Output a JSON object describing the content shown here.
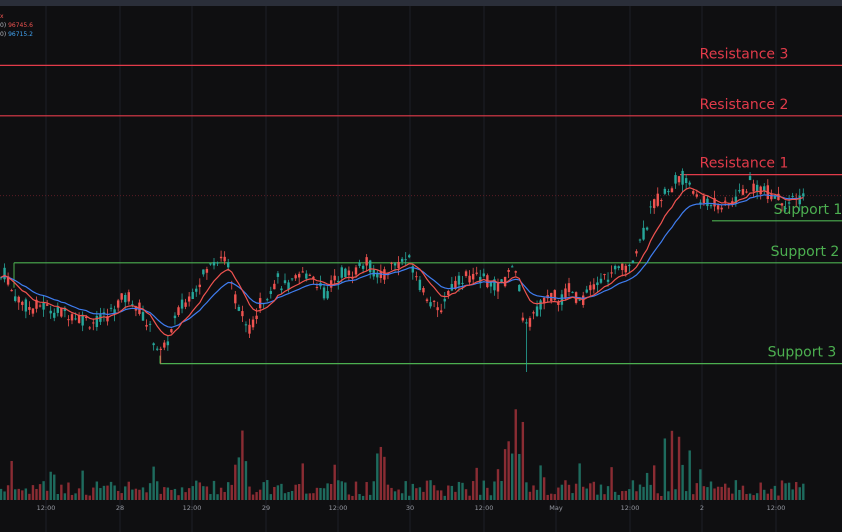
{
  "legend": [
    {
      "label": "x",
      "value": "",
      "color": "#ef5350"
    },
    {
      "label": "0)",
      "value": "96745.6",
      "color": "#ef5350"
    },
    {
      "label": "0)",
      "value": "96715.2",
      "color": "#42a5f5"
    }
  ],
  "levels": [
    {
      "name": "Resistance 3",
      "price": 103,
      "color": "#e23b4a"
    },
    {
      "name": "Resistance 2",
      "price": 91,
      "color": "#e23b4a"
    },
    {
      "name": "Resistance 1",
      "price": 77,
      "color": "#e23b4a"
    },
    {
      "name": "Support 1",
      "price": 66,
      "color": "#4caf50"
    },
    {
      "name": "Support 2",
      "price": 56,
      "color": "#4caf50"
    },
    {
      "name": "Support 3",
      "price": 32,
      "color": "#4caf50"
    }
  ],
  "x_ticks": [
    "12:00",
    "28",
    "12:00",
    "29",
    "12:00",
    "30",
    "12:00",
    "May",
    "12:00",
    "2",
    "12:00"
  ],
  "chart_data": {
    "type": "candlestick",
    "series": [
      {
        "name": "EMA fast",
        "color": "#ef5350"
      },
      {
        "name": "EMA slow",
        "color": "#3f7df0"
      }
    ],
    "price_path": [
      [
        0,
        52
      ],
      [
        6,
        54
      ],
      [
        12,
        49
      ],
      [
        20,
        47
      ],
      [
        30,
        45
      ],
      [
        40,
        46
      ],
      [
        50,
        45
      ],
      [
        60,
        44
      ],
      [
        70,
        44
      ],
      [
        80,
        43
      ],
      [
        90,
        42
      ],
      [
        100,
        42
      ],
      [
        110,
        44
      ],
      [
        120,
        47
      ],
      [
        130,
        48
      ],
      [
        140,
        45
      ],
      [
        150,
        40
      ],
      [
        155,
        37
      ],
      [
        162,
        34
      ],
      [
        170,
        39
      ],
      [
        180,
        45
      ],
      [
        190,
        48
      ],
      [
        200,
        52
      ],
      [
        210,
        55
      ],
      [
        220,
        58
      ],
      [
        228,
        56
      ],
      [
        232,
        51
      ],
      [
        238,
        45
      ],
      [
        244,
        43
      ],
      [
        250,
        40
      ],
      [
        256,
        44
      ],
      [
        262,
        47
      ],
      [
        270,
        50
      ],
      [
        278,
        52
      ],
      [
        286,
        50
      ],
      [
        294,
        51
      ],
      [
        302,
        53
      ],
      [
        310,
        54
      ],
      [
        318,
        51
      ],
      [
        326,
        48
      ],
      [
        334,
        52
      ],
      [
        342,
        54
      ],
      [
        350,
        53
      ],
      [
        358,
        55
      ],
      [
        366,
        56
      ],
      [
        374,
        54
      ],
      [
        382,
        53
      ],
      [
        390,
        55
      ],
      [
        398,
        56
      ],
      [
        406,
        57
      ],
      [
        414,
        55
      ],
      [
        420,
        51
      ],
      [
        426,
        49
      ],
      [
        432,
        46
      ],
      [
        438,
        44
      ],
      [
        444,
        47
      ],
      [
        450,
        50
      ],
      [
        458,
        52
      ],
      [
        466,
        53
      ],
      [
        474,
        52
      ],
      [
        482,
        53
      ],
      [
        490,
        51
      ],
      [
        498,
        50
      ],
      [
        506,
        52
      ],
      [
        514,
        55
      ],
      [
        518,
        53
      ],
      [
        522,
        45
      ],
      [
        526,
        40
      ],
      [
        532,
        43
      ],
      [
        538,
        45
      ],
      [
        546,
        47
      ],
      [
        554,
        48
      ],
      [
        562,
        47
      ],
      [
        570,
        50
      ],
      [
        578,
        47
      ],
      [
        586,
        48
      ],
      [
        594,
        50
      ],
      [
        602,
        52
      ],
      [
        610,
        53
      ],
      [
        618,
        54
      ],
      [
        626,
        55
      ],
      [
        634,
        58
      ],
      [
        642,
        62
      ],
      [
        648,
        66
      ],
      [
        654,
        70
      ],
      [
        660,
        72
      ],
      [
        666,
        74
      ],
      [
        672,
        73
      ],
      [
        678,
        77
      ],
      [
        684,
        76
      ],
      [
        690,
        75
      ],
      [
        696,
        72
      ],
      [
        702,
        70
      ],
      [
        710,
        71
      ],
      [
        718,
        70
      ],
      [
        726,
        69
      ],
      [
        734,
        71
      ],
      [
        742,
        73
      ],
      [
        750,
        75
      ],
      [
        758,
        74
      ],
      [
        766,
        73
      ],
      [
        774,
        72
      ],
      [
        782,
        71
      ],
      [
        790,
        70
      ],
      [
        798,
        71
      ],
      [
        806,
        72
      ]
    ],
    "volume_pattern": "tall spikes near 29th, 30th late and May 2nd"
  }
}
